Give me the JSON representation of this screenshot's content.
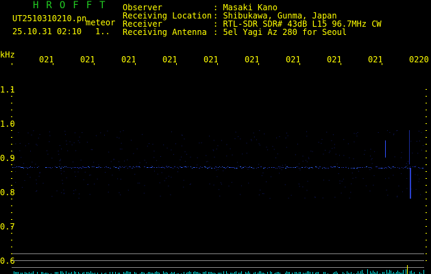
{
  "header": {
    "title": "HROFFT",
    "filename": "UT2510310210.pn",
    "mode": "meteor",
    "datetime": "25.10.31 02:10",
    "count": "1..",
    "fields": [
      {
        "label": "Observer",
        "value": ": Masaki Kano"
      },
      {
        "label": "Receiving Location",
        "value": ": Shibukawa, Gunma, Japan"
      },
      {
        "label": "Receiver",
        "value": ": RTL-SDR SDR# 43dB L15 96.7MHz CW"
      },
      {
        "label": "Receiving Antenna",
        "value": ": 5el Yagi Az 280 for Seoul"
      }
    ]
  },
  "axis": {
    "unit": "kHz",
    "time_labels": [
      "0211",
      "0212",
      "0213",
      "0214",
      "0215",
      "0216",
      "0217",
      "0218",
      "0219",
      "0220"
    ],
    "freq_labels": [
      "1.1",
      "1.0",
      "0.9",
      "0.8",
      "0.7",
      "0.6"
    ]
  },
  "colors": {
    "text": "#ffff00",
    "title": "#22cc22",
    "signal": "#2040ff",
    "level": "#00ffff"
  }
}
